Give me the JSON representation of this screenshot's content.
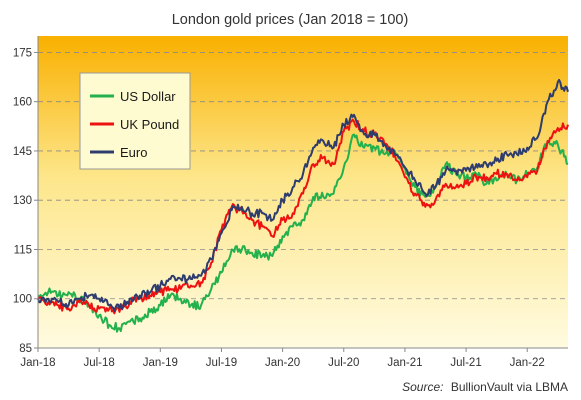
{
  "chart_data": {
    "type": "line",
    "title": "London gold prices (Jan 2018 = 100)",
    "xlabel": "",
    "ylabel": "",
    "x_ticks": [
      "Jan-18",
      "Jul-18",
      "Jan-19",
      "Jul-19",
      "Jan-20",
      "Jul-20",
      "Jan-21",
      "Jul-21",
      "Jan-22"
    ],
    "y_ticks": [
      85,
      100,
      115,
      130,
      145,
      160,
      175
    ],
    "ylim": [
      85,
      180
    ],
    "xlim": [
      "2018-01",
      "2022-05"
    ],
    "grid": "horizontal dashed",
    "legend_position": "top-left",
    "background": "yellow-orange vertical gradient",
    "x": [
      "2018-01",
      "2018-02",
      "2018-03",
      "2018-04",
      "2018-05",
      "2018-06",
      "2018-07",
      "2018-08",
      "2018-09",
      "2018-10",
      "2018-11",
      "2018-12",
      "2019-01",
      "2019-02",
      "2019-03",
      "2019-04",
      "2019-05",
      "2019-06",
      "2019-07",
      "2019-08",
      "2019-09",
      "2019-10",
      "2019-11",
      "2019-12",
      "2020-01",
      "2020-02",
      "2020-03",
      "2020-04",
      "2020-05",
      "2020-06",
      "2020-07",
      "2020-08",
      "2020-09",
      "2020-10",
      "2020-11",
      "2020-12",
      "2021-01",
      "2021-02",
      "2021-03",
      "2021-04",
      "2021-05",
      "2021-06",
      "2021-07",
      "2021-08",
      "2021-09",
      "2021-10",
      "2021-11",
      "2021-12",
      "2022-01",
      "2022-02",
      "2022-03",
      "2022-04",
      "2022-05"
    ],
    "series": [
      {
        "name": "US Dollar",
        "color": "#22b14c",
        "values": [
          101,
          102,
          101,
          102,
          100,
          98,
          95,
          92,
          91,
          93,
          94,
          96,
          98,
          101,
          100,
          98,
          98,
          103,
          108,
          115,
          115,
          114,
          113,
          113,
          119,
          122,
          124,
          131,
          131,
          132,
          140,
          150,
          146,
          146,
          144,
          145,
          140,
          134,
          131,
          134,
          141,
          138,
          137,
          138,
          135,
          136,
          138,
          136,
          138,
          140,
          148,
          147,
          141
        ]
      },
      {
        "name": "UK Pound",
        "color": "#ee1111",
        "values": [
          100,
          99,
          98,
          97,
          99,
          98,
          97,
          97,
          96,
          99,
          100,
          101,
          102,
          103,
          103,
          104,
          105,
          111,
          121,
          128,
          127,
          124,
          122,
          119,
          124,
          126,
          132,
          141,
          143,
          141,
          151,
          154,
          151,
          150,
          147,
          144,
          137,
          132,
          128,
          130,
          135,
          134,
          135,
          137,
          137,
          138,
          138,
          136,
          137,
          139,
          148,
          152,
          153
        ]
      },
      {
        "name": "Euro",
        "color": "#2e3c6e",
        "values": [
          100,
          100,
          99,
          98,
          100,
          101,
          100,
          98,
          97,
          100,
          101,
          102,
          104,
          106,
          106,
          106,
          107,
          112,
          120,
          127,
          128,
          126,
          126,
          124,
          130,
          134,
          138,
          146,
          148,
          146,
          153,
          156,
          150,
          150,
          147,
          144,
          140,
          136,
          132,
          134,
          139,
          139,
          139,
          141,
          141,
          142,
          144,
          144,
          146,
          149,
          160,
          166,
          163
        ]
      }
    ]
  },
  "legend": {
    "items": [
      {
        "label": "US Dollar",
        "color": "#22b14c"
      },
      {
        "label": "UK Pound",
        "color": "#ee1111"
      },
      {
        "label": "Euro",
        "color": "#2e3c6e"
      }
    ]
  },
  "source": {
    "prefix": "Source:",
    "text": "BullionVault via LBMA"
  }
}
